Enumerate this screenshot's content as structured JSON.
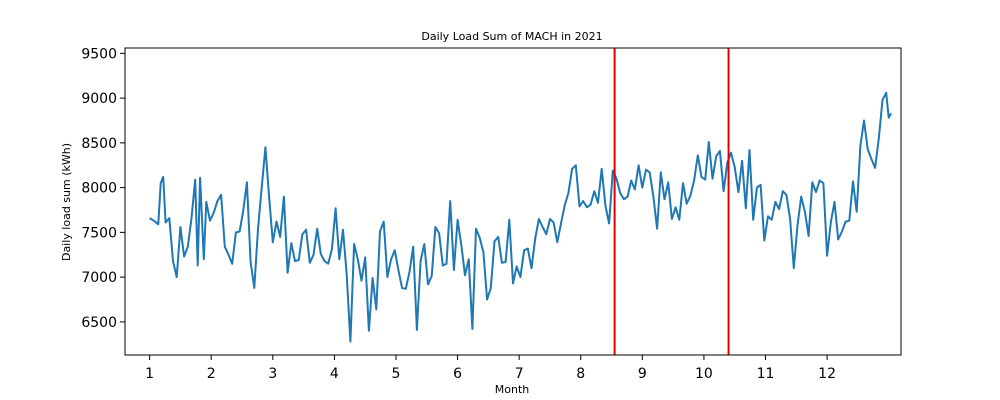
{
  "chart_data": {
    "type": "line",
    "title": "Daily Load Sum of MACH in 2021",
    "xlabel": "Month",
    "ylabel": "Daily load sum (kWh)",
    "xlim": [
      0.6,
      13.2
    ],
    "ylim": [
      6130,
      9560
    ],
    "xticks": [
      1,
      2,
      3,
      4,
      5,
      6,
      7,
      8,
      9,
      10,
      11,
      12
    ],
    "yticks": [
      6500,
      7000,
      7500,
      8000,
      8500,
      9000,
      9500
    ],
    "grid": false,
    "legend": "none",
    "line_color": "#1f77b4",
    "vline_color": "#e00000",
    "vlines": [
      8.55,
      10.4
    ],
    "series": [
      {
        "points": [
          [
            1.0,
            7660
          ],
          [
            1.07,
            7630
          ],
          [
            1.14,
            7590
          ],
          [
            1.18,
            8050
          ],
          [
            1.22,
            8120
          ],
          [
            1.26,
            7610
          ],
          [
            1.32,
            7660
          ],
          [
            1.38,
            7180
          ],
          [
            1.44,
            7000
          ],
          [
            1.5,
            7560
          ],
          [
            1.56,
            7230
          ],
          [
            1.62,
            7340
          ],
          [
            1.68,
            7660
          ],
          [
            1.74,
            8090
          ],
          [
            1.78,
            7130
          ],
          [
            1.82,
            8110
          ],
          [
            1.88,
            7200
          ],
          [
            1.92,
            7840
          ],
          [
            1.98,
            7630
          ],
          [
            2.04,
            7720
          ],
          [
            2.1,
            7850
          ],
          [
            2.16,
            7920
          ],
          [
            2.22,
            7340
          ],
          [
            2.28,
            7250
          ],
          [
            2.34,
            7150
          ],
          [
            2.4,
            7500
          ],
          [
            2.46,
            7510
          ],
          [
            2.52,
            7740
          ],
          [
            2.58,
            8060
          ],
          [
            2.64,
            7170
          ],
          [
            2.7,
            6880
          ],
          [
            2.76,
            7540
          ],
          [
            2.82,
            8000
          ],
          [
            2.88,
            8450
          ],
          [
            2.94,
            7900
          ],
          [
            3.0,
            7390
          ],
          [
            3.06,
            7620
          ],
          [
            3.12,
            7450
          ],
          [
            3.18,
            7900
          ],
          [
            3.24,
            7050
          ],
          [
            3.3,
            7380
          ],
          [
            3.36,
            7180
          ],
          [
            3.42,
            7190
          ],
          [
            3.48,
            7480
          ],
          [
            3.54,
            7530
          ],
          [
            3.6,
            7160
          ],
          [
            3.66,
            7250
          ],
          [
            3.72,
            7540
          ],
          [
            3.78,
            7260
          ],
          [
            3.84,
            7180
          ],
          [
            3.9,
            7150
          ],
          [
            3.96,
            7310
          ],
          [
            4.02,
            7770
          ],
          [
            4.08,
            7200
          ],
          [
            4.14,
            7530
          ],
          [
            4.2,
            7030
          ],
          [
            4.26,
            6280
          ],
          [
            4.32,
            7370
          ],
          [
            4.38,
            7200
          ],
          [
            4.44,
            6960
          ],
          [
            4.5,
            7220
          ],
          [
            4.56,
            6400
          ],
          [
            4.62,
            6990
          ],
          [
            4.68,
            6640
          ],
          [
            4.74,
            7510
          ],
          [
            4.8,
            7620
          ],
          [
            4.86,
            7000
          ],
          [
            4.92,
            7200
          ],
          [
            4.98,
            7300
          ],
          [
            5.04,
            7080
          ],
          [
            5.1,
            6880
          ],
          [
            5.16,
            6870
          ],
          [
            5.22,
            7060
          ],
          [
            5.28,
            7340
          ],
          [
            5.34,
            6410
          ],
          [
            5.4,
            7180
          ],
          [
            5.46,
            7370
          ],
          [
            5.52,
            6920
          ],
          [
            5.58,
            7010
          ],
          [
            5.64,
            7560
          ],
          [
            5.7,
            7490
          ],
          [
            5.76,
            7130
          ],
          [
            5.82,
            7150
          ],
          [
            5.88,
            7850
          ],
          [
            5.94,
            7080
          ],
          [
            6.0,
            7640
          ],
          [
            6.06,
            7360
          ],
          [
            6.12,
            7020
          ],
          [
            6.18,
            7200
          ],
          [
            6.24,
            6420
          ],
          [
            6.3,
            7540
          ],
          [
            6.36,
            7440
          ],
          [
            6.42,
            7280
          ],
          [
            6.48,
            6750
          ],
          [
            6.54,
            6880
          ],
          [
            6.6,
            7400
          ],
          [
            6.66,
            7450
          ],
          [
            6.72,
            7160
          ],
          [
            6.78,
            7170
          ],
          [
            6.84,
            7640
          ],
          [
            6.9,
            6930
          ],
          [
            6.96,
            7120
          ],
          [
            7.02,
            7000
          ],
          [
            7.08,
            7300
          ],
          [
            7.14,
            7320
          ],
          [
            7.2,
            7100
          ],
          [
            7.26,
            7430
          ],
          [
            7.32,
            7650
          ],
          [
            7.38,
            7560
          ],
          [
            7.44,
            7480
          ],
          [
            7.5,
            7650
          ],
          [
            7.56,
            7610
          ],
          [
            7.62,
            7390
          ],
          [
            7.68,
            7600
          ],
          [
            7.74,
            7800
          ],
          [
            7.8,
            7940
          ],
          [
            7.86,
            8210
          ],
          [
            7.92,
            8250
          ],
          [
            7.98,
            7790
          ],
          [
            8.04,
            7850
          ],
          [
            8.1,
            7780
          ],
          [
            8.16,
            7810
          ],
          [
            8.22,
            7960
          ],
          [
            8.28,
            7830
          ],
          [
            8.34,
            8210
          ],
          [
            8.4,
            7800
          ],
          [
            8.46,
            7600
          ],
          [
            8.52,
            8190
          ],
          [
            8.58,
            8100
          ],
          [
            8.64,
            7940
          ],
          [
            8.7,
            7870
          ],
          [
            8.76,
            7900
          ],
          [
            8.82,
            8080
          ],
          [
            8.88,
            7980
          ],
          [
            8.94,
            8250
          ],
          [
            9.0,
            8000
          ],
          [
            9.06,
            8200
          ],
          [
            9.12,
            8170
          ],
          [
            9.18,
            7900
          ],
          [
            9.24,
            7540
          ],
          [
            9.3,
            8170
          ],
          [
            9.36,
            7870
          ],
          [
            9.42,
            8060
          ],
          [
            9.48,
            7650
          ],
          [
            9.54,
            7780
          ],
          [
            9.6,
            7640
          ],
          [
            9.66,
            8050
          ],
          [
            9.72,
            7820
          ],
          [
            9.78,
            7910
          ],
          [
            9.84,
            8080
          ],
          [
            9.9,
            8360
          ],
          [
            9.96,
            8120
          ],
          [
            10.02,
            8090
          ],
          [
            10.08,
            8510
          ],
          [
            10.14,
            8100
          ],
          [
            10.2,
            8350
          ],
          [
            10.26,
            8410
          ],
          [
            10.32,
            7960
          ],
          [
            10.38,
            8280
          ],
          [
            10.44,
            8390
          ],
          [
            10.5,
            8230
          ],
          [
            10.56,
            7950
          ],
          [
            10.62,
            8300
          ],
          [
            10.68,
            7770
          ],
          [
            10.74,
            8420
          ],
          [
            10.8,
            7640
          ],
          [
            10.86,
            8000
          ],
          [
            10.92,
            8030
          ],
          [
            10.98,
            7410
          ],
          [
            11.04,
            7680
          ],
          [
            11.1,
            7640
          ],
          [
            11.16,
            7840
          ],
          [
            11.22,
            7760
          ],
          [
            11.28,
            7960
          ],
          [
            11.34,
            7920
          ],
          [
            11.4,
            7650
          ],
          [
            11.46,
            7100
          ],
          [
            11.52,
            7580
          ],
          [
            11.58,
            7900
          ],
          [
            11.64,
            7730
          ],
          [
            11.7,
            7460
          ],
          [
            11.76,
            8060
          ],
          [
            11.82,
            7950
          ],
          [
            11.88,
            8080
          ],
          [
            11.94,
            8050
          ],
          [
            12.0,
            7240
          ],
          [
            12.06,
            7610
          ],
          [
            12.12,
            7840
          ],
          [
            12.18,
            7420
          ],
          [
            12.24,
            7510
          ],
          [
            12.3,
            7620
          ],
          [
            12.36,
            7630
          ],
          [
            12.42,
            8070
          ],
          [
            12.48,
            7730
          ],
          [
            12.54,
            8470
          ],
          [
            12.6,
            8750
          ],
          [
            12.66,
            8430
          ],
          [
            12.72,
            8320
          ],
          [
            12.78,
            8220
          ],
          [
            12.84,
            8550
          ],
          [
            12.9,
            8980
          ],
          [
            12.96,
            9060
          ],
          [
            13.0,
            8780
          ],
          [
            13.04,
            8830
          ]
        ]
      }
    ]
  }
}
